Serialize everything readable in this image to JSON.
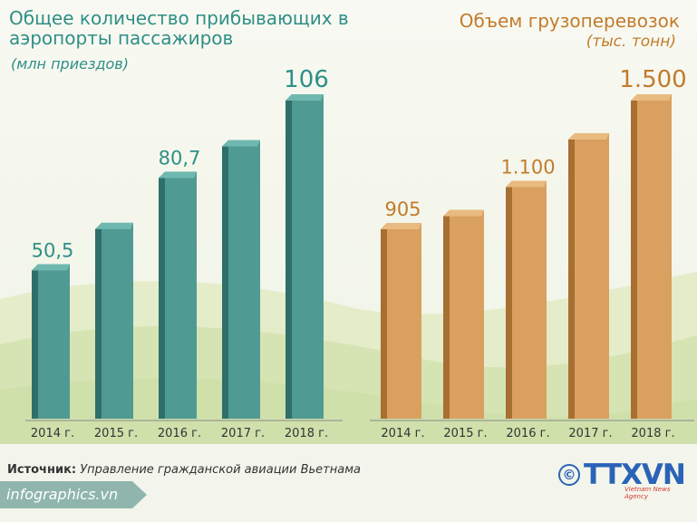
{
  "left_chart": {
    "title": "Общее количество прибывающих в аэропорты пассажиров",
    "subtitle": "(млн приездов)"
  },
  "right_chart": {
    "title": "Объем грузоперевозок",
    "subtitle": "(тыс. тонн)"
  },
  "source": {
    "label": "Источник:",
    "text": "Управление гражданской авиации Вьетнама"
  },
  "site": "infographics.vn",
  "logo": {
    "brand": "TTXVN",
    "tagline": "Vietnam News Agency",
    "copyright": "©"
  },
  "colors": {
    "teal_front": "#4f9a92",
    "teal_side": "#2f6f69",
    "teal_top": "#6fb8af",
    "orange_front": "#d9a060",
    "orange_side": "#a86f32",
    "orange_top": "#e9bb80",
    "teal_label": "#2f8f87",
    "orange_label": "#c37b2b"
  },
  "chart_data": [
    {
      "type": "bar",
      "title": "Общее количество прибывающих в аэропорты пассажиров",
      "subtitle": "(млн приездов)",
      "categories": [
        "2014 г.",
        "2015 г.",
        "2016 г.",
        "2017 г.",
        "2018 г."
      ],
      "values": [
        50.5,
        64,
        80.7,
        91,
        106
      ],
      "data_labels": [
        "50,5",
        "",
        "80,7",
        "",
        "106"
      ],
      "ylim": [
        0,
        106
      ],
      "grid": false
    },
    {
      "type": "bar",
      "title": "Объем грузоперевозок",
      "subtitle": "(тыс. тонн)",
      "categories": [
        "2014 г.",
        "2015 г.",
        "2016 г.",
        "2017 г.",
        "2018 г."
      ],
      "values": [
        905,
        965,
        1100,
        1320,
        1500
      ],
      "data_labels": [
        "905",
        "",
        "1.100",
        "",
        "1.500"
      ],
      "ylim": [
        0,
        1500
      ],
      "grid": false
    }
  ]
}
